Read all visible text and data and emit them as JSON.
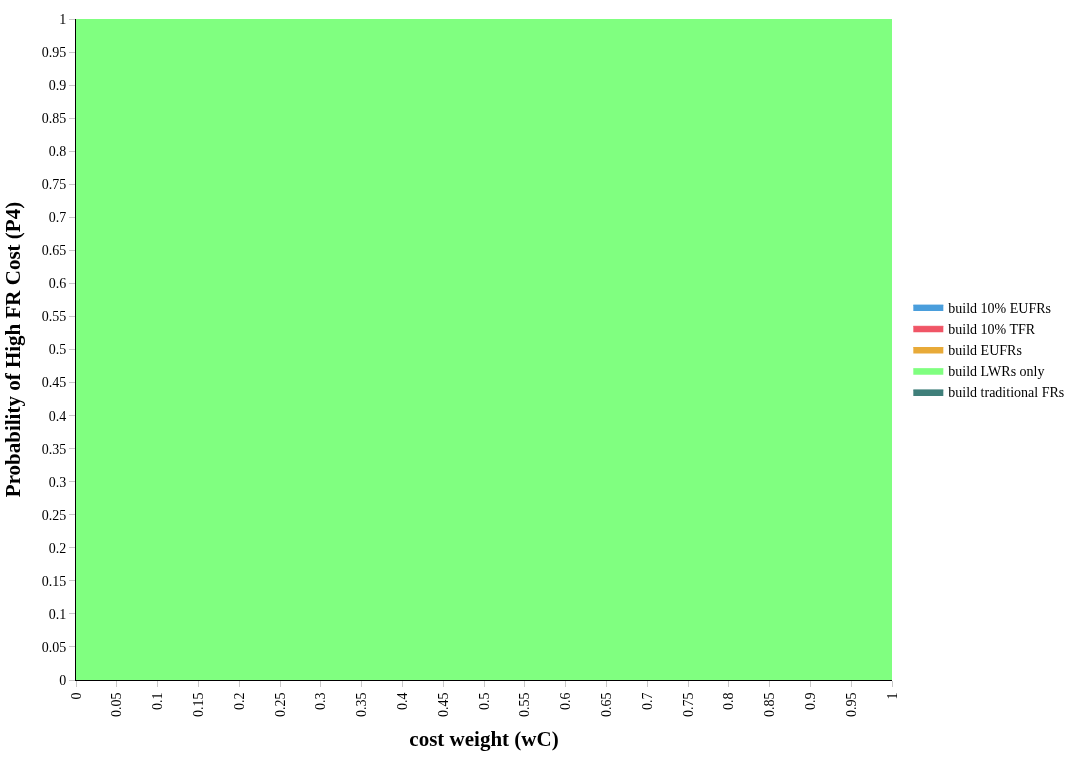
{
  "chart_data": {
    "type": "area",
    "xlabel": "cost weight (wC)",
    "ylabel": "Probability of High FR Cost (P4)",
    "x": [
      0,
      1
    ],
    "series": [
      {
        "name": "build 10% EUFRs",
        "color": "#4a9edc",
        "values": [
          null,
          null
        ]
      },
      {
        "name": "build 10% TFR",
        "color": "#f05566",
        "values": [
          null,
          null
        ]
      },
      {
        "name": "build EUFRs",
        "color": "#e8aa38",
        "values": [
          null,
          null
        ]
      },
      {
        "name": "build LWRs only",
        "color": "#80ff80",
        "values": [
          1,
          1
        ]
      },
      {
        "name": "build traditional FRs",
        "color": "#3f7f7a",
        "values": [
          null,
          null
        ]
      }
    ],
    "xlim": [
      0,
      1
    ],
    "ylim": [
      0,
      1
    ],
    "xticks": [
      0,
      0.05,
      0.1,
      0.15,
      0.2,
      0.25,
      0.3,
      0.35,
      0.4,
      0.45,
      0.5,
      0.55,
      0.6,
      0.65,
      0.7,
      0.75,
      0.8,
      0.85,
      0.9,
      0.95,
      1
    ],
    "yticks": [
      0,
      0.05,
      0.1,
      0.15,
      0.2,
      0.25,
      0.3,
      0.35,
      0.4,
      0.45,
      0.5,
      0.55,
      0.6,
      0.65,
      0.7,
      0.75,
      0.8,
      0.85,
      0.9,
      0.95,
      1
    ],
    "legend": "right"
  }
}
